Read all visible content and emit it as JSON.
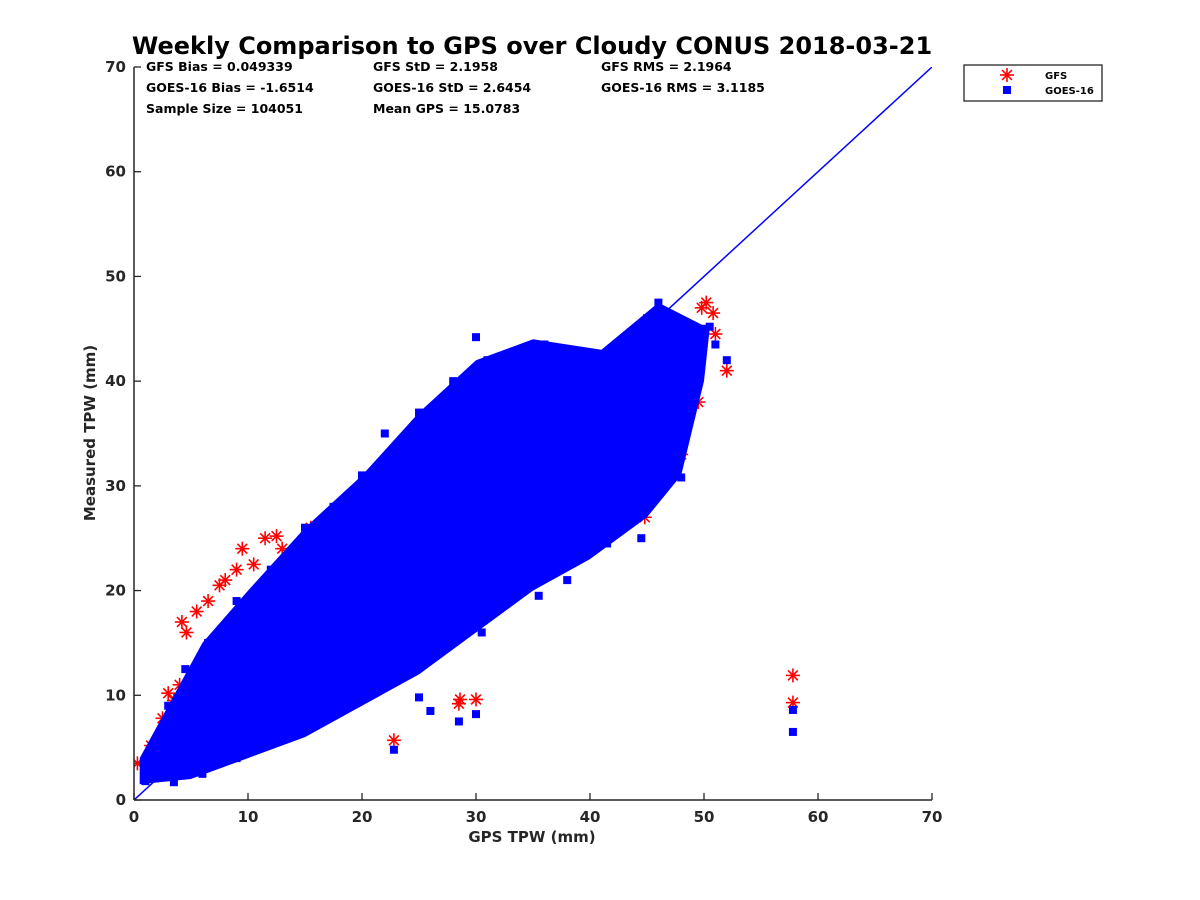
{
  "chart_data": {
    "type": "scatter",
    "title": "Weekly Comparison to GPS over Cloudy CONUS 2018-03-21",
    "xlabel": "GPS TPW (mm)",
    "ylabel": "Measured TPW (mm)",
    "xlim": [
      0,
      70
    ],
    "ylim": [
      0,
      70
    ],
    "x_ticks": [
      0,
      10,
      20,
      30,
      40,
      50,
      60,
      70
    ],
    "y_ticks": [
      0,
      10,
      20,
      30,
      40,
      50,
      60,
      70
    ],
    "grid": false,
    "legend_position": "top-right outside",
    "stats": [
      [
        "GFS Bias = 0.049339",
        "GFS StD = 2.1958",
        "GFS RMS = 2.1964"
      ],
      [
        "GOES-16 Bias = -1.6514",
        "GOES-16 StD = 2.6454",
        "GOES-16 RMS = 3.1185"
      ],
      [
        "Sample Size = 104051",
        "Mean GPS = 15.0783"
      ]
    ],
    "reference_line": {
      "x": [
        0,
        70
      ],
      "y": [
        0,
        70
      ],
      "color": "#0000ff"
    },
    "series": [
      {
        "name": "GFS",
        "marker": "asterisk",
        "color": "#ff0000",
        "points": [
          [
            0.3,
            3.5
          ],
          [
            1.5,
            5.2
          ],
          [
            2.5,
            7.8
          ],
          [
            3.0,
            10.2
          ],
          [
            3.5,
            9.5
          ],
          [
            4.0,
            11.0
          ],
          [
            4.2,
            17.0
          ],
          [
            4.6,
            16.0
          ],
          [
            5.5,
            18.0
          ],
          [
            6.5,
            19.0
          ],
          [
            7.5,
            20.5
          ],
          [
            8.0,
            21.0
          ],
          [
            9.0,
            22.0
          ],
          [
            9.5,
            24.0
          ],
          [
            10.5,
            22.5
          ],
          [
            11.5,
            25.0
          ],
          [
            12.5,
            25.2
          ],
          [
            13.0,
            24.0
          ],
          [
            13.5,
            23.0
          ],
          [
            14.5,
            22.0
          ],
          [
            15.0,
            24.5
          ],
          [
            15.5,
            26.0
          ],
          [
            16.5,
            25.5
          ],
          [
            18.0,
            26.5
          ],
          [
            19.5,
            27.5
          ],
          [
            20.5,
            28.5
          ],
          [
            21.5,
            29.0
          ],
          [
            23.0,
            32.0
          ],
          [
            25.5,
            35.5
          ],
          [
            27.5,
            37.0
          ],
          [
            29.5,
            39.5
          ],
          [
            31.0,
            38.5
          ],
          [
            33.0,
            39.0
          ],
          [
            35.0,
            40.0
          ],
          [
            37.5,
            41.0
          ],
          [
            40.0,
            41.5
          ],
          [
            42.0,
            43.0
          ],
          [
            44.8,
            45.5
          ],
          [
            46.5,
            46.5
          ],
          [
            47.5,
            44.5
          ],
          [
            48.5,
            42.0
          ],
          [
            49.5,
            38.0
          ],
          [
            48.0,
            33.0
          ],
          [
            46.0,
            35.0
          ],
          [
            44.8,
            27.0
          ],
          [
            43.0,
            30.0
          ],
          [
            40.5,
            27.0
          ],
          [
            38.0,
            24.0
          ],
          [
            36.5,
            22.5
          ],
          [
            34.5,
            21.5
          ],
          [
            32.5,
            20.0
          ],
          [
            30.5,
            18.8
          ],
          [
            28.5,
            20.5
          ],
          [
            26.0,
            19.5
          ],
          [
            22.8,
            5.7
          ],
          [
            28.5,
            9.2
          ],
          [
            28.6,
            9.6
          ],
          [
            30.0,
            9.6
          ],
          [
            57.8,
            11.9
          ],
          [
            57.8,
            9.3
          ],
          [
            50.2,
            47.5
          ],
          [
            50.8,
            46.5
          ],
          [
            51.0,
            44.5
          ],
          [
            52.0,
            41.0
          ],
          [
            49.8,
            47.0
          ],
          [
            22.5,
            12.0
          ],
          [
            24.0,
            26.0
          ],
          [
            18.5,
            21.0
          ],
          [
            26.5,
            30.0
          ],
          [
            36.0,
            30.0
          ]
        ]
      },
      {
        "name": "GOES-16",
        "marker": "square",
        "color": "#0000ff",
        "points": [
          [
            1.0,
            1.8
          ],
          [
            2.0,
            2.5
          ],
          [
            3.0,
            3.5
          ],
          [
            4.0,
            4.2
          ],
          [
            5.0,
            5.5
          ],
          [
            6.0,
            6.0
          ],
          [
            7.0,
            7.2
          ],
          [
            8.0,
            8.0
          ],
          [
            9.0,
            8.8
          ],
          [
            10.0,
            9.5
          ],
          [
            11.0,
            10.5
          ],
          [
            12.0,
            11.5
          ],
          [
            13.0,
            12.0
          ],
          [
            14.0,
            13.0
          ],
          [
            15.0,
            13.8
          ],
          [
            16.0,
            14.5
          ],
          [
            17.0,
            15.5
          ],
          [
            18.0,
            16.5
          ],
          [
            19.0,
            17.5
          ],
          [
            20.0,
            18.2
          ],
          [
            21.0,
            19.0
          ],
          [
            22.0,
            20.0
          ],
          [
            23.0,
            21.0
          ],
          [
            24.0,
            22.0
          ],
          [
            25.0,
            23.0
          ],
          [
            26.0,
            24.0
          ],
          [
            27.0,
            25.0
          ],
          [
            28.0,
            26.0
          ],
          [
            29.0,
            27.0
          ],
          [
            30.0,
            28.0
          ],
          [
            31.0,
            28.8
          ],
          [
            32.0,
            29.5
          ],
          [
            33.0,
            30.5
          ],
          [
            34.0,
            31.0
          ],
          [
            35.0,
            32.0
          ],
          [
            36.0,
            33.0
          ],
          [
            37.0,
            34.0
          ],
          [
            38.0,
            34.5
          ],
          [
            39.0,
            35.5
          ],
          [
            40.0,
            36.0
          ],
          [
            41.0,
            37.0
          ],
          [
            42.0,
            37.5
          ],
          [
            43.0,
            38.5
          ],
          [
            44.0,
            39.0
          ],
          [
            45.0,
            40.0
          ],
          [
            46.0,
            41.0
          ],
          [
            47.0,
            42.0
          ],
          [
            48.0,
            43.0
          ],
          [
            49.0,
            44.0
          ],
          [
            50.0,
            45.0
          ],
          [
            46.0,
            47.5
          ],
          [
            45.0,
            46.0
          ],
          [
            30.0,
            44.2
          ],
          [
            28.0,
            40.0
          ],
          [
            25.0,
            37.0
          ],
          [
            22.0,
            35.0
          ],
          [
            20.0,
            31.0
          ],
          [
            17.5,
            28.0
          ],
          [
            15.0,
            26.0
          ],
          [
            12.0,
            22.0
          ],
          [
            9.0,
            19.0
          ],
          [
            6.5,
            15.0
          ],
          [
            4.5,
            12.5
          ],
          [
            3.0,
            9.0
          ],
          [
            26.0,
            8.5
          ],
          [
            22.8,
            4.8
          ],
          [
            28.5,
            7.5
          ],
          [
            30.0,
            8.2
          ],
          [
            25.0,
            9.8
          ],
          [
            57.8,
            8.6
          ],
          [
            57.8,
            6.5
          ],
          [
            48.0,
            30.8
          ],
          [
            44.5,
            25.0
          ],
          [
            41.5,
            24.5
          ],
          [
            38.0,
            21.0
          ],
          [
            35.5,
            19.5
          ],
          [
            30.5,
            16.0
          ],
          [
            27.0,
            15.5
          ],
          [
            24.0,
            14.0
          ],
          [
            21.0,
            11.0
          ],
          [
            18.0,
            9.5
          ],
          [
            15.0,
            7.5
          ],
          [
            12.0,
            5.5
          ],
          [
            9.0,
            4.0
          ],
          [
            6.0,
            2.5
          ],
          [
            3.5,
            1.7
          ],
          [
            45.5,
            35.0
          ],
          [
            47.5,
            38.0
          ],
          [
            38.5,
            40.0
          ],
          [
            36.0,
            43.5
          ],
          [
            34.0,
            43.0
          ],
          [
            31.0,
            42.0
          ],
          [
            19.0,
            25.0
          ],
          [
            16.0,
            22.0
          ],
          [
            23.0,
            27.5
          ],
          [
            27.5,
            32.5
          ],
          [
            10.5,
            16.5
          ],
          [
            13.5,
            19.0
          ],
          [
            8.0,
            12.0
          ],
          [
            40.0,
            28.0
          ],
          [
            33.0,
            24.5
          ],
          [
            42.5,
            32.5
          ],
          [
            50.5,
            45.2
          ],
          [
            51.0,
            43.5
          ],
          [
            52.0,
            42.0
          ],
          [
            49.0,
            40.0
          ],
          [
            37.0,
            26.5
          ],
          [
            29.5,
            20.0
          ]
        ]
      }
    ]
  }
}
